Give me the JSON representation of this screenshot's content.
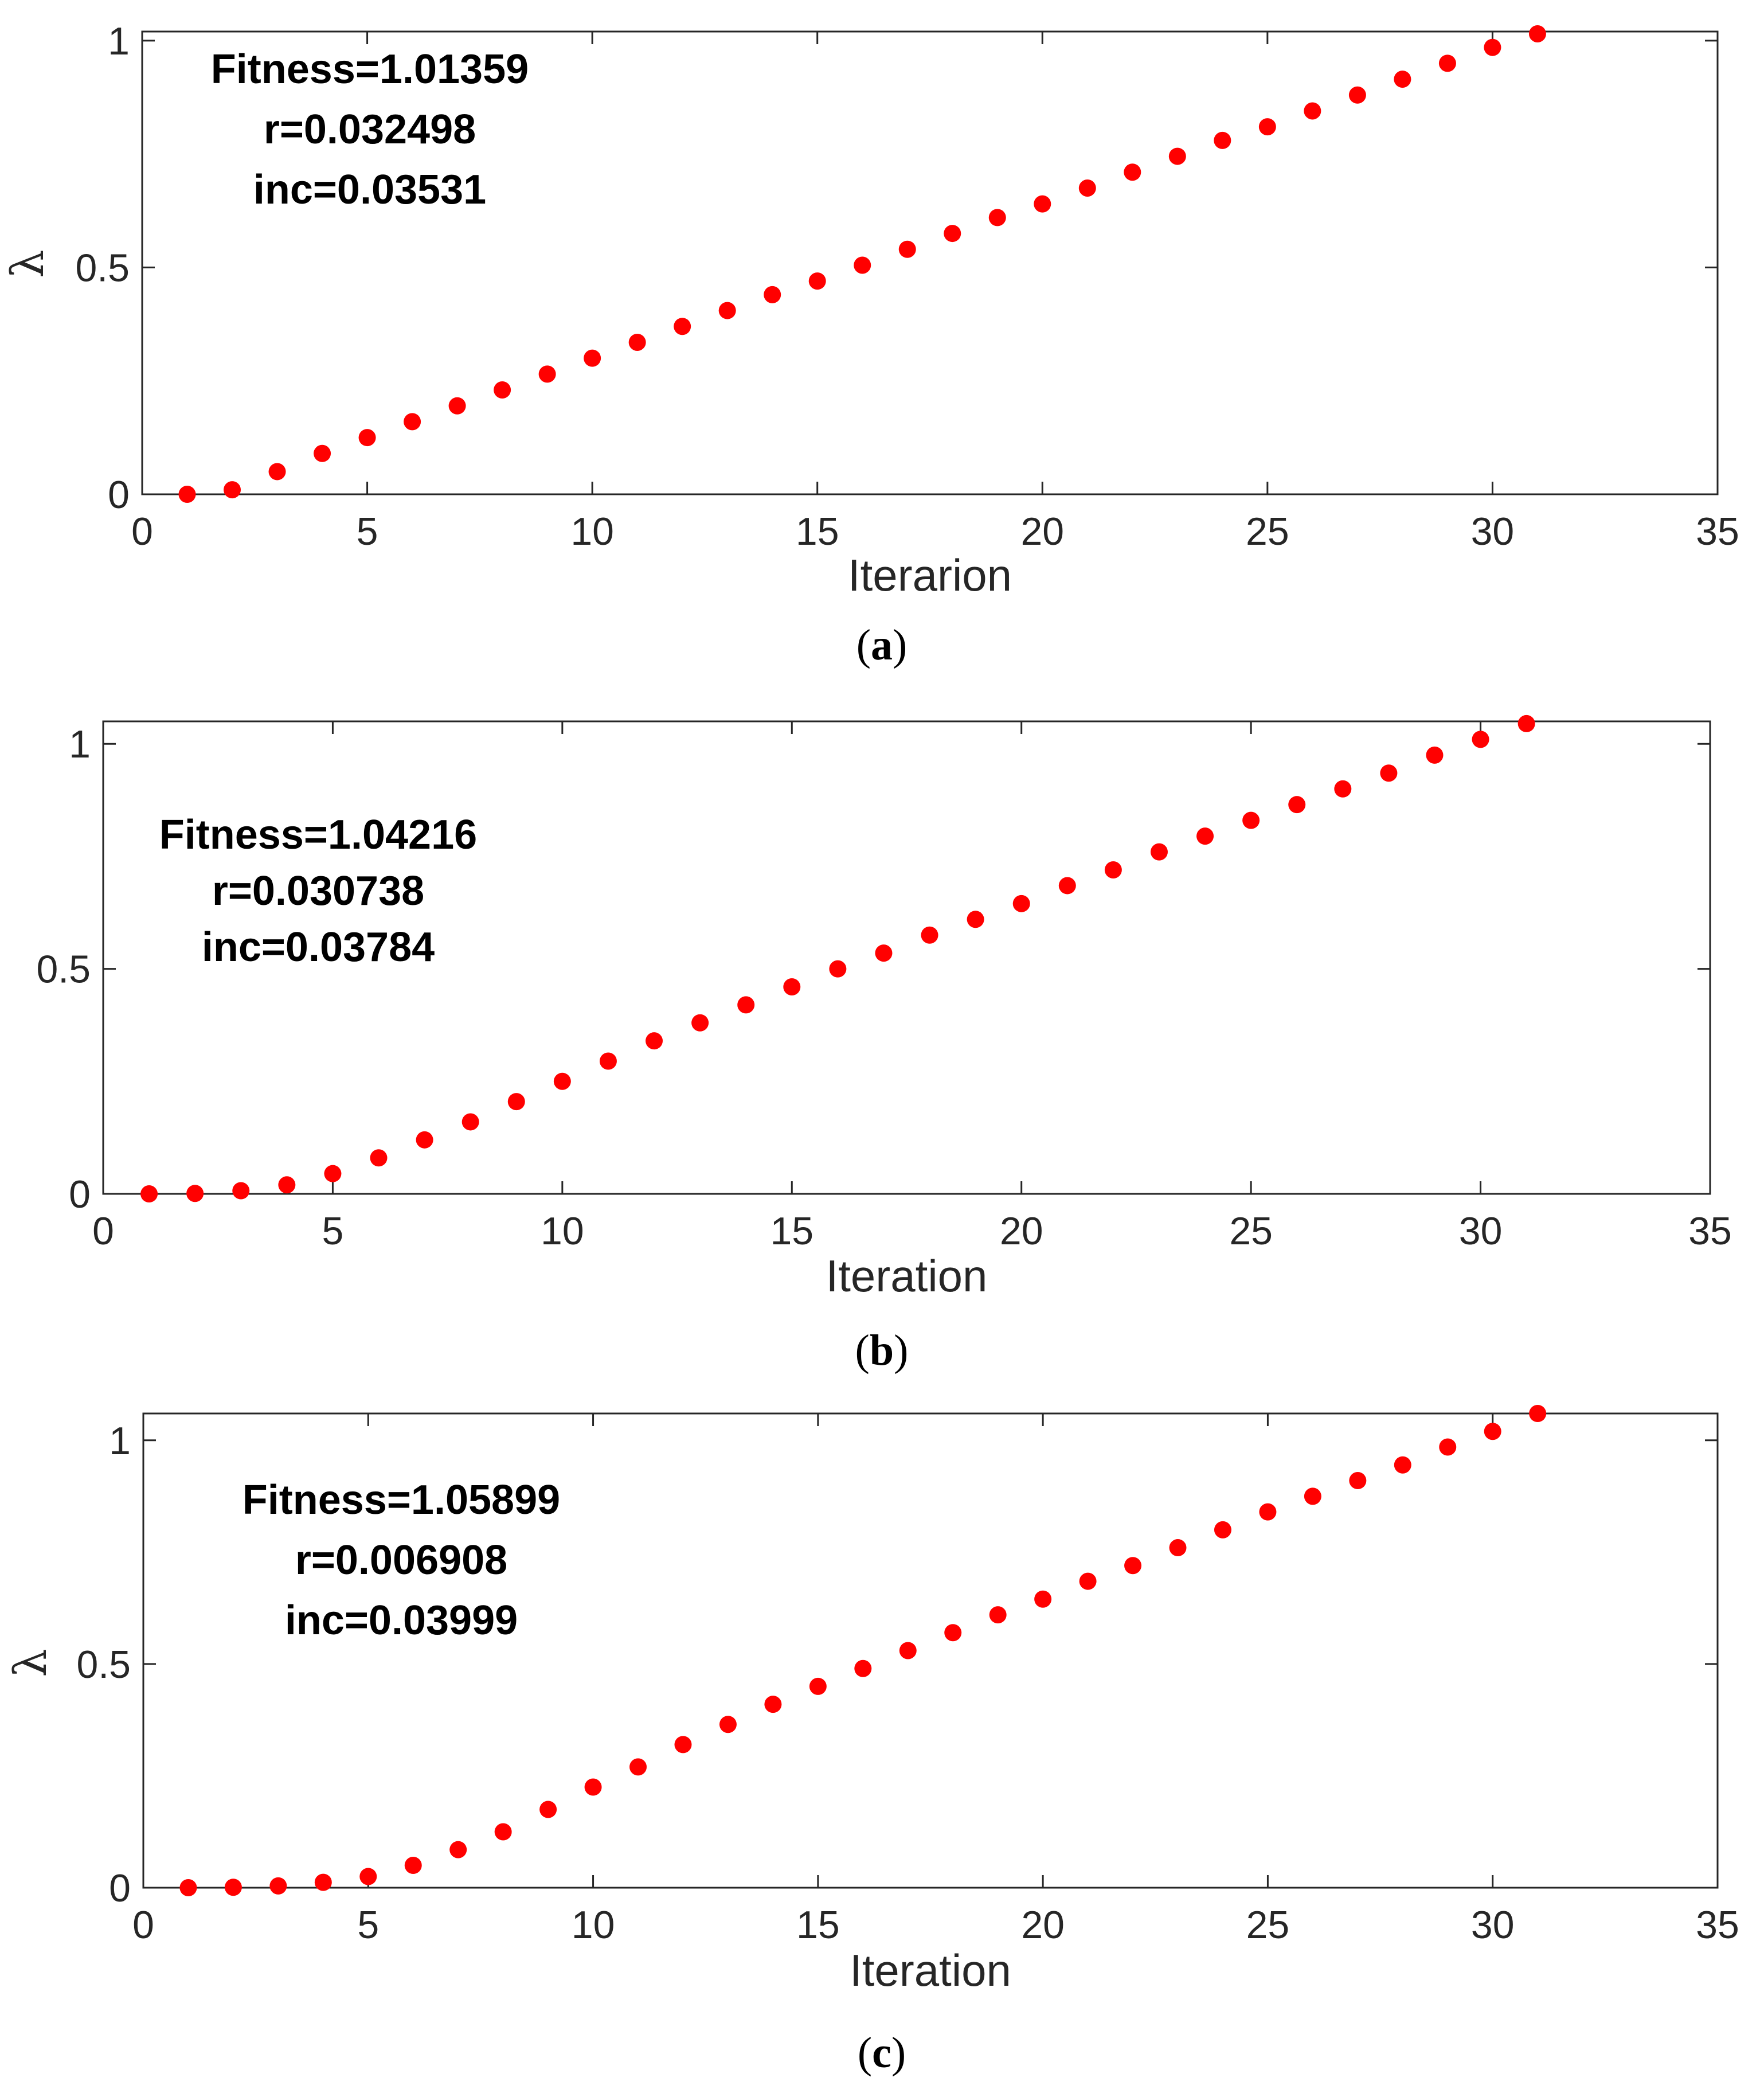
{
  "chart_data": [
    {
      "type": "scatter",
      "panel": "a",
      "caption_letter": "a",
      "xlabel": "Iterarion",
      "ylabel": "λ",
      "xlim": [
        0,
        35
      ],
      "ylim": [
        0,
        1.02
      ],
      "xticks": [
        "0",
        "5",
        "10",
        "15",
        "20",
        "25",
        "30",
        "35"
      ],
      "yticks": [
        "0",
        "0.5",
        "1"
      ],
      "annotation": [
        "Fitness=1.01359",
        "r=0.032498",
        "inc=0.03531"
      ],
      "marker_color": "#ff0000",
      "x": [
        1,
        2,
        3,
        4,
        5,
        6,
        7,
        8,
        9,
        10,
        11,
        12,
        13,
        14,
        15,
        16,
        17,
        18,
        19,
        20,
        21,
        22,
        23,
        24,
        25,
        26,
        27,
        28,
        29,
        30,
        31
      ],
      "y": [
        0,
        0.01,
        0.05,
        0.09,
        0.125,
        0.16,
        0.195,
        0.23,
        0.265,
        0.3,
        0.335,
        0.37,
        0.405,
        0.44,
        0.47,
        0.505,
        0.54,
        0.575,
        0.61,
        0.64,
        0.675,
        0.71,
        0.745,
        0.78,
        0.81,
        0.845,
        0.88,
        0.915,
        0.95,
        0.985,
        1.015
      ]
    },
    {
      "type": "scatter",
      "panel": "b",
      "caption_letter": "b",
      "xlabel": "Iteration",
      "ylabel": "",
      "xlim": [
        0,
        35
      ],
      "ylim": [
        0,
        1.05
      ],
      "xticks": [
        "0",
        "5",
        "10",
        "15",
        "20",
        "25",
        "30",
        "35"
      ],
      "yticks": [
        "0",
        "0.5",
        "1"
      ],
      "annotation": [
        "Fitness=1.04216",
        "r=0.030738",
        "inc=0.03784"
      ],
      "marker_color": "#ff0000",
      "x": [
        1,
        2,
        3,
        4,
        5,
        6,
        7,
        8,
        9,
        10,
        11,
        12,
        13,
        14,
        15,
        16,
        17,
        18,
        19,
        20,
        21,
        22,
        23,
        24,
        25,
        26,
        27,
        28,
        29,
        30,
        31
      ],
      "y": [
        0,
        0.001,
        0.007,
        0.02,
        0.045,
        0.08,
        0.12,
        0.16,
        0.205,
        0.25,
        0.295,
        0.34,
        0.38,
        0.42,
        0.46,
        0.5,
        0.535,
        0.575,
        0.61,
        0.645,
        0.685,
        0.72,
        0.76,
        0.795,
        0.83,
        0.865,
        0.9,
        0.935,
        0.975,
        1.01,
        1.045
      ]
    },
    {
      "type": "scatter",
      "panel": "c",
      "caption_letter": "c",
      "xlabel": "Iteration",
      "ylabel": "λ",
      "xlim": [
        0,
        35
      ],
      "ylim": [
        0,
        1.06
      ],
      "xticks": [
        "0",
        "5",
        "10",
        "15",
        "20",
        "25",
        "30",
        "35"
      ],
      "yticks": [
        "0",
        "0.5",
        "1"
      ],
      "annotation": [
        "Fitness=1.05899",
        "r=0.006908",
        "inc=0.03999"
      ],
      "marker_color": "#ff0000",
      "x": [
        1,
        2,
        3,
        4,
        5,
        6,
        7,
        8,
        9,
        10,
        11,
        12,
        13,
        14,
        15,
        16,
        17,
        18,
        19,
        20,
        21,
        22,
        23,
        24,
        25,
        26,
        27,
        28,
        29,
        30,
        31
      ],
      "y": [
        0,
        0.001,
        0.004,
        0.012,
        0.025,
        0.05,
        0.085,
        0.125,
        0.175,
        0.225,
        0.27,
        0.32,
        0.365,
        0.41,
        0.45,
        0.49,
        0.53,
        0.57,
        0.61,
        0.645,
        0.685,
        0.72,
        0.76,
        0.8,
        0.84,
        0.875,
        0.91,
        0.945,
        0.985,
        1.02,
        1.06
      ]
    }
  ]
}
